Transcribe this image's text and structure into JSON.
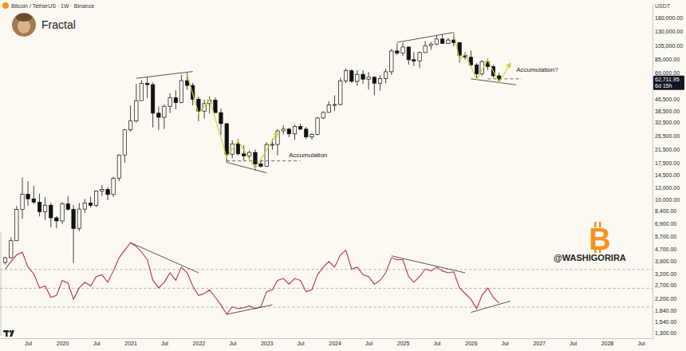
{
  "chart_data": [
    {
      "type": "candlestick",
      "title": "Fractal",
      "subtitle": "Bitcoin / TetherUS · 1W · Binance",
      "y_label": "USDT",
      "x": [
        "2019-03",
        "2019-04",
        "2019-05",
        "2019-06",
        "2019-07",
        "2019-08",
        "2019-09",
        "2019-10",
        "2019-11",
        "2019-12",
        "2020-01",
        "2020-02",
        "2020-03",
        "2020-04",
        "2020-05",
        "2020-06",
        "2020-07",
        "2020-08",
        "2020-09",
        "2020-10",
        "2020-11",
        "2020-12",
        "2021-01",
        "2021-02",
        "2021-03",
        "2021-04",
        "2021-05",
        "2021-06",
        "2021-07",
        "2021-08",
        "2021-09",
        "2021-10",
        "2021-11",
        "2021-12",
        "2022-01",
        "2022-02",
        "2022-03",
        "2022-04",
        "2022-05",
        "2022-06",
        "2022-07",
        "2022-08",
        "2022-09",
        "2022-10",
        "2022-11",
        "2022-12",
        "2023-01",
        "2023-02",
        "2023-03",
        "2023-04",
        "2023-05",
        "2023-06",
        "2023-07",
        "2023-08",
        "2023-09",
        "2023-10",
        "2023-11",
        "2023-12",
        "2024-01",
        "2024-02",
        "2024-03",
        "2024-04",
        "2024-05",
        "2024-06",
        "2024-07",
        "2024-08",
        "2024-09",
        "2024-10",
        "2024-11",
        "2024-12",
        "2025-01",
        "2025-02",
        "2025-03",
        "2025-04",
        "2025-05",
        "2025-06",
        "2025-07",
        "2025-08",
        "2025-09",
        "2025-10",
        "2025-11",
        "2025-12",
        "2026-01",
        "2026-02",
        "2026-03",
        "2026-04",
        "2026-05",
        "2026-06"
      ],
      "open": [
        3820,
        4105,
        5320,
        8575,
        10820,
        10085,
        9590,
        8290,
        9150,
        7545,
        7195,
        9350,
        8600,
        6410,
        8620,
        9450,
        9140,
        11350,
        11650,
        10780,
        13800,
        19700,
        28920,
        33090,
        45140,
        58800,
        57700,
        37300,
        35040,
        41460,
        47130,
        43820,
        61300,
        56950,
        46200,
        38480,
        43160,
        45510,
        37630,
        31800,
        19940,
        23300,
        20050,
        19420,
        20490,
        17170,
        16540,
        23130,
        23140,
        28470,
        29230,
        27210,
        30470,
        29230,
        25940,
        26960,
        34640,
        37720,
        42280,
        42580,
        61130,
        71280,
        60640,
        67490,
        62680,
        64630,
        58970,
        63330,
        70220,
        96410,
        93430,
        102430,
        84350,
        82550,
        94200,
        104600,
        107140,
        115760,
        108250,
        114050,
        109610,
        90390,
        87650,
        78000,
        68000,
        82000,
        76000,
        66000
      ],
      "high": [
        4150,
        5600,
        9070,
        13970,
        13200,
        12330,
        10920,
        10370,
        9500,
        7745,
        9580,
        10500,
        9190,
        9470,
        10080,
        10400,
        11440,
        12470,
        12070,
        14100,
        19860,
        29300,
        41950,
        58350,
        61780,
        64850,
        59600,
        41330,
        42450,
        50500,
        52920,
        67000,
        69000,
        59050,
        47990,
        45820,
        48190,
        47440,
        40020,
        31980,
        24670,
        25210,
        22800,
        21090,
        21450,
        18390,
        23960,
        25250,
        29180,
        31000,
        29820,
        31430,
        31800,
        30230,
        27480,
        35200,
        38450,
        44700,
        48970,
        64000,
        73780,
        72800,
        71980,
        71980,
        70020,
        65100,
        66500,
        73620,
        99590,
        108350,
        109590,
        102750,
        95000,
        95760,
        111980,
        110530,
        123220,
        124470,
        117900,
        126200,
        111000,
        94600,
        97000,
        80000,
        84000,
        86000,
        78000,
        69000
      ],
      "low": [
        3700,
        4050,
        5300,
        7450,
        9080,
        9320,
        7710,
        7300,
        6515,
        6430,
        6855,
        8450,
        3780,
        6150,
        8110,
        8830,
        8900,
        10530,
        9880,
        10370,
        13200,
        17570,
        28130,
        32300,
        44950,
        47040,
        30000,
        28800,
        29280,
        37330,
        39600,
        43280,
        53260,
        42000,
        32920,
        34320,
        37160,
        37580,
        26700,
        17600,
        18780,
        19520,
        18150,
        18190,
        15480,
        16260,
        16500,
        21350,
        19550,
        26940,
        25810,
        24800,
        28860,
        25170,
        24900,
        26560,
        34100,
        37620,
        38560,
        41880,
        59000,
        59190,
        56550,
        58400,
        53500,
        49000,
        52550,
        58900,
        66830,
        90500,
        89160,
        78260,
        76610,
        74430,
        93380,
        98200,
        105120,
        107350,
        107270,
        103530,
        80600,
        84400,
        76000,
        62500,
        66000,
        72000,
        64000,
        59500
      ],
      "close": [
        4105,
        5320,
        8575,
        10820,
        10085,
        9590,
        8290,
        9150,
        7545,
        7195,
        9350,
        8600,
        6410,
        8620,
        9450,
        9140,
        11350,
        11650,
        10780,
        13800,
        19700,
        28920,
        33090,
        45140,
        58800,
        57700,
        37300,
        35040,
        41460,
        47130,
        43820,
        61300,
        56950,
        46200,
        38480,
        43160,
        45510,
        37630,
        31800,
        19940,
        23300,
        20050,
        19420,
        20490,
        17170,
        16540,
        23130,
        23140,
        28470,
        29230,
        27210,
        30470,
        29230,
        25940,
        26960,
        34640,
        37720,
        42280,
        42580,
        61130,
        71280,
        60640,
        67490,
        62680,
        64630,
        58970,
        63330,
        70220,
        96410,
        93430,
        102430,
        84350,
        82550,
        94200,
        104600,
        107140,
        115760,
        108250,
        114050,
        109610,
        90390,
        87650,
        78000,
        68000,
        82000,
        76000,
        66000,
        62711.95
      ],
      "color": "#111111",
      "log": "y",
      "grid": false,
      "xlim": [
        "2019-02",
        "2028-09"
      ],
      "xticks": [
        {
          "value": "2019-07",
          "label": "Jul"
        },
        {
          "value": "2020-01",
          "label": "2020"
        },
        {
          "value": "2020-07",
          "label": "Jul"
        },
        {
          "value": "2021-01",
          "label": "2021"
        },
        {
          "value": "2021-07",
          "label": "Jul"
        },
        {
          "value": "2022-01",
          "label": "2022"
        },
        {
          "value": "2022-07",
          "label": "Jul"
        },
        {
          "value": "2023-01",
          "label": "2023"
        },
        {
          "value": "2023-07",
          "label": "Jul"
        },
        {
          "value": "2024-01",
          "label": "2024"
        },
        {
          "value": "2024-07",
          "label": "Jul"
        },
        {
          "value": "2025-01",
          "label": "2025"
        },
        {
          "value": "2025-07",
          "label": "Jul"
        },
        {
          "value": "2026-01",
          "label": "2026"
        },
        {
          "value": "2026-07",
          "label": "Jul"
        },
        {
          "value": "2027-01",
          "label": "2027"
        },
        {
          "value": "2027-07",
          "label": "Jul"
        },
        {
          "value": "2028-01",
          "label": "2028"
        },
        {
          "value": "2028-07",
          "label": "Jul"
        }
      ],
      "ylim": [
        1200,
        200000
      ],
      "yticks": [
        {
          "value": 160000,
          "label": "160,000.00"
        },
        {
          "value": 130000,
          "label": "130,000.00"
        },
        {
          "value": 105000,
          "label": "105,000.00"
        },
        {
          "value": 85000,
          "label": "85,000.00"
        },
        {
          "value": 69000,
          "label": "69,000.00"
        },
        {
          "value": 46500,
          "label": "46,500.00"
        },
        {
          "value": 38500,
          "label": "38,500.00"
        },
        {
          "value": 32500,
          "label": "32,500.00"
        },
        {
          "value": 26500,
          "label": "26,500.00"
        },
        {
          "value": 21500,
          "label": "21,500.00"
        },
        {
          "value": 17500,
          "label": "17,500.00"
        },
        {
          "value": 14500,
          "label": "14,500.00"
        },
        {
          "value": 12000,
          "label": "12,000.00"
        },
        {
          "value": 10000,
          "label": "10,000.00"
        },
        {
          "value": 8400,
          "label": "8,400.00"
        },
        {
          "value": 6900,
          "label": "6,900.00"
        },
        {
          "value": 5700,
          "label": "5,700.00"
        },
        {
          "value": 4700,
          "label": "4,700.00"
        },
        {
          "value": 3900,
          "label": "3,900.00"
        },
        {
          "value": 3200,
          "label": "3,200.00"
        },
        {
          "value": 2700,
          "label": "2,700.00"
        },
        {
          "value": 2200,
          "label": "2,200.00"
        },
        {
          "value": 1840,
          "label": "1,840.00"
        },
        {
          "value": 1540,
          "label": "1,540.00"
        },
        {
          "value": 1300,
          "label": "1,300.00"
        }
      ],
      "last_price": {
        "value": 62711.95,
        "label": "62,711.95",
        "countdown": "6d 15h"
      },
      "trend_lines": [
        {
          "x": [
            "2021-02",
            "2021-12"
          ],
          "values": [
            63500,
            70500
          ],
          "color": "#444444",
          "line_style": "solid"
        },
        {
          "x": [
            "2022-06",
            "2023-01"
          ],
          "values": [
            17600,
            15000
          ],
          "color": "#444444",
          "line_style": "solid"
        },
        {
          "x": [
            "2022-06",
            "2023-07"
          ],
          "values": [
            18000,
            18000
          ],
          "color": "#555555",
          "line_style": "dashed"
        },
        {
          "x": [
            "2024-12",
            "2025-10"
          ],
          "values": [
            110000,
            128000
          ],
          "color": "#444444",
          "line_style": "solid"
        },
        {
          "x": [
            "2026-01",
            "2026-09"
          ],
          "values": [
            63000,
            57500
          ],
          "color": "#444444",
          "line_style": "solid"
        },
        {
          "x": [
            "2026-04",
            "2026-10"
          ],
          "values": [
            63000,
            63000
          ],
          "color": "#555555",
          "line_style": "dashed"
        }
      ],
      "fractal_paths": [
        {
          "x": [
            "2021-11",
            "2022-01",
            "2022-03",
            "2022-06",
            "2022-08",
            "2022-11",
            "2023-03"
          ],
          "values": [
            67000,
            37000,
            46000,
            19000,
            24500,
            16000,
            28000
          ],
          "color": "#cfd33b",
          "marker": "arrow"
        },
        {
          "x": [
            "2025-10",
            "2025-11",
            "2025-12",
            "2026-02",
            "2026-04",
            "2026-06",
            "2026-08"
          ],
          "values": [
            125000,
            85000,
            92000,
            62500,
            84000,
            59500,
            80000
          ],
          "color": "#cfd33b",
          "marker": "arrow"
        }
      ],
      "annotations": [
        {
          "text": "Accumulation",
          "x": "2023-05",
          "y": 19000
        },
        {
          "text": "Accumulation?",
          "x": "2026-09",
          "y": 70000
        }
      ],
      "watermark": "@WASHIGORIRA",
      "logo": "B"
    },
    {
      "type": "line",
      "x": [
        "2019-03",
        "2019-04",
        "2019-05",
        "2019-06",
        "2019-07",
        "2019-08",
        "2019-09",
        "2019-10",
        "2019-11",
        "2019-12",
        "2020-01",
        "2020-02",
        "2020-03",
        "2020-04",
        "2020-05",
        "2020-06",
        "2020-07",
        "2020-08",
        "2020-09",
        "2020-10",
        "2020-11",
        "2020-12",
        "2021-01",
        "2021-02",
        "2021-03",
        "2021-04",
        "2021-05",
        "2021-06",
        "2021-07",
        "2021-08",
        "2021-09",
        "2021-10",
        "2021-11",
        "2021-12",
        "2022-01",
        "2022-02",
        "2022-03",
        "2022-04",
        "2022-05",
        "2022-06",
        "2022-07",
        "2022-08",
        "2022-09",
        "2022-10",
        "2022-11",
        "2022-12",
        "2023-01",
        "2023-02",
        "2023-03",
        "2023-04",
        "2023-05",
        "2023-06",
        "2023-07",
        "2023-08",
        "2023-09",
        "2023-10",
        "2023-11",
        "2023-12",
        "2024-01",
        "2024-02",
        "2024-03",
        "2024-04",
        "2024-05",
        "2024-06",
        "2024-07",
        "2024-08",
        "2024-09",
        "2024-10",
        "2024-11",
        "2024-12",
        "2025-01",
        "2025-02",
        "2025-03",
        "2025-04",
        "2025-05",
        "2025-06",
        "2025-07",
        "2025-08",
        "2025-09",
        "2025-10",
        "2025-11",
        "2025-12",
        "2026-01",
        "2026-02",
        "2026-03",
        "2026-04",
        "2026-05",
        "2026-06"
      ],
      "values": [
        70,
        78,
        85,
        88,
        72,
        65,
        50,
        52,
        40,
        42,
        58,
        55,
        38,
        50,
        56,
        52,
        62,
        64,
        56,
        68,
        82,
        90,
        98,
        94,
        88,
        80,
        58,
        50,
        56,
        66,
        58,
        72,
        66,
        52,
        42,
        44,
        48,
        40,
        32,
        22,
        30,
        28,
        29,
        31,
        28,
        30,
        46,
        48,
        58,
        60,
        54,
        60,
        58,
        46,
        48,
        64,
        72,
        78,
        72,
        85,
        90,
        70,
        72,
        64,
        62,
        54,
        58,
        66,
        82,
        80,
        80,
        62,
        56,
        62,
        70,
        68,
        72,
        68,
        66,
        67,
        50,
        44,
        38,
        28,
        42,
        50,
        40,
        34
      ],
      "color": "#b8304f",
      "line_style": "solid",
      "xlim": [
        "2019-02",
        "2028-09"
      ],
      "ylim": [
        0,
        110
      ],
      "yticks": [
        30,
        50,
        70
      ],
      "grid": true,
      "tick_labels": false,
      "trend_lines": [
        {
          "x": [
            "2021-01",
            "2022-01"
          ],
          "values": [
            98,
            66
          ],
          "color": "#444444",
          "line_style": "solid"
        },
        {
          "x": [
            "2022-06",
            "2023-02"
          ],
          "values": [
            22,
            32
          ],
          "color": "#444444",
          "line_style": "solid"
        },
        {
          "x": [
            "2024-11",
            "2025-12"
          ],
          "values": [
            84,
            66
          ],
          "color": "#444444",
          "line_style": "solid"
        },
        {
          "x": [
            "2026-01",
            "2026-08"
          ],
          "values": [
            24,
            36
          ],
          "color": "#444444",
          "line_style": "solid"
        }
      ]
    }
  ]
}
